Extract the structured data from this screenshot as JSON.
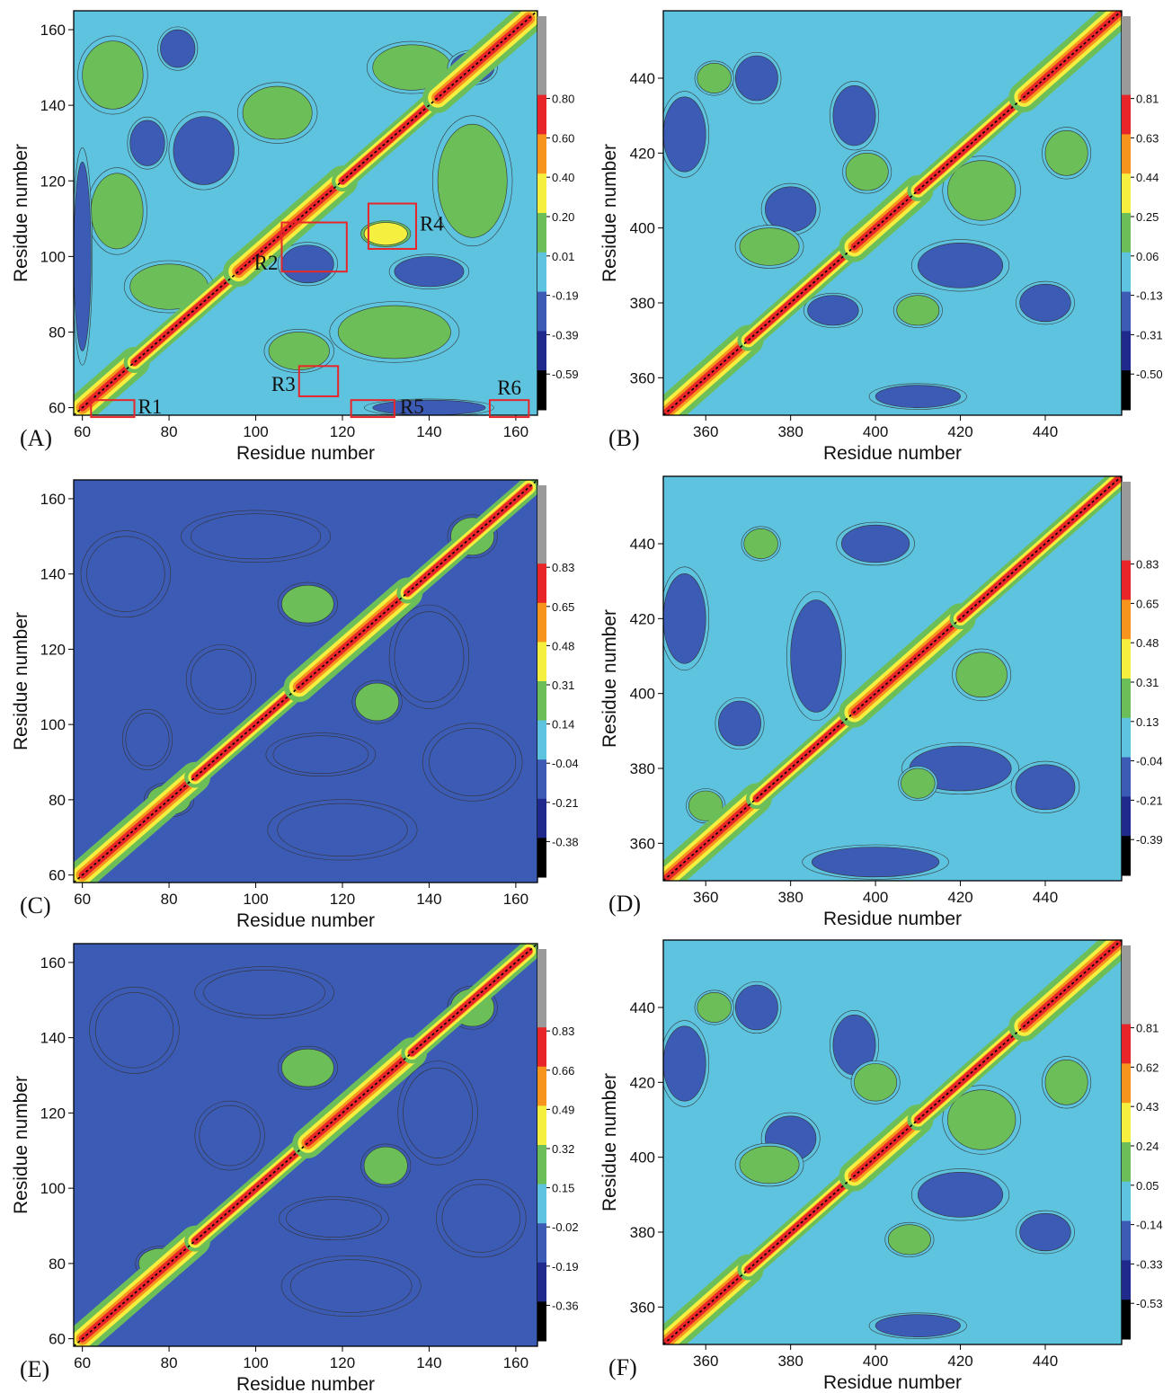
{
  "figure": {
    "colormap": [
      "#000000",
      "#1f2a8c",
      "#3c5bb5",
      "#5ec3de",
      "#6cbf58",
      "#f5f040",
      "#f7941d",
      "#e8262a",
      "#9a9a9a"
    ]
  },
  "chart_data": [
    {
      "id": "A",
      "type": "heatmap",
      "panel_label": "(A)",
      "xlabel": "Residue number",
      "ylabel": "Residue number",
      "xlim": [
        58,
        165
      ],
      "ylim": [
        58,
        165
      ],
      "xticks": [
        60,
        80,
        100,
        120,
        140,
        160
      ],
      "yticks": [
        60,
        80,
        100,
        120,
        140,
        160
      ],
      "colorbar_labels": [
        "0.80",
        "0.60",
        "0.40",
        "0.20",
        "0.01",
        "-0.19",
        "-0.39",
        "-0.59"
      ],
      "regions": [
        {
          "label": "R1",
          "x": [
            62,
            72
          ],
          "y": [
            57.5,
            62
          ]
        },
        {
          "label": "R2",
          "x": [
            106,
            121
          ],
          "y": [
            96,
            109
          ]
        },
        {
          "label": "R3",
          "x": [
            110,
            119
          ],
          "y": [
            63,
            71
          ]
        },
        {
          "label": "R4",
          "x": [
            126,
            137
          ],
          "y": [
            102,
            114
          ]
        },
        {
          "label": "R5",
          "x": [
            122,
            132
          ],
          "y": [
            57.5,
            62
          ]
        },
        {
          "label": "R6",
          "x": [
            154,
            163
          ],
          "y": [
            57.5,
            62
          ]
        }
      ],
      "diag_breaks": [
        60,
        72,
        96,
        120,
        142,
        163
      ],
      "blobs": [
        {
          "x": 67,
          "y": 148,
          "w": 14,
          "h": 18,
          "lvl": 4
        },
        {
          "x": 68,
          "y": 112,
          "w": 12,
          "h": 20,
          "lvl": 4
        },
        {
          "x": 105,
          "y": 138,
          "w": 16,
          "h": 14,
          "lvl": 4
        },
        {
          "x": 136,
          "y": 150,
          "w": 18,
          "h": 12,
          "lvl": 4
        },
        {
          "x": 150,
          "y": 120,
          "w": 16,
          "h": 30,
          "lvl": 4
        },
        {
          "x": 132,
          "y": 80,
          "w": 26,
          "h": 14,
          "lvl": 4
        },
        {
          "x": 80,
          "y": 92,
          "w": 18,
          "h": 12,
          "lvl": 4
        },
        {
          "x": 110,
          "y": 75,
          "w": 14,
          "h": 10,
          "lvl": 4
        },
        {
          "x": 88,
          "y": 128,
          "w": 14,
          "h": 18,
          "lvl": 2
        },
        {
          "x": 75,
          "y": 130,
          "w": 8,
          "h": 12,
          "lvl": 2
        },
        {
          "x": 112,
          "y": 98,
          "w": 12,
          "h": 10,
          "lvl": 2
        },
        {
          "x": 140,
          "y": 96,
          "w": 16,
          "h": 8,
          "lvl": 2
        },
        {
          "x": 82,
          "y": 155,
          "w": 8,
          "h": 10,
          "lvl": 2
        },
        {
          "x": 150,
          "y": 150,
          "w": 10,
          "h": 8,
          "lvl": 2
        },
        {
          "x": 140,
          "y": 60,
          "w": 26,
          "h": 4,
          "lvl": 2
        },
        {
          "x": 60,
          "y": 100,
          "w": 4,
          "h": 50,
          "lvl": 2
        },
        {
          "x": 130,
          "y": 106,
          "w": 10,
          "h": 6,
          "lvl": 5
        }
      ]
    },
    {
      "id": "B",
      "type": "heatmap",
      "panel_label": "(B)",
      "xlabel": "Residue number",
      "ylabel": "Residue number",
      "xlim": [
        350,
        458
      ],
      "ylim": [
        350,
        458
      ],
      "xticks": [
        360,
        380,
        400,
        420,
        440
      ],
      "yticks": [
        360,
        380,
        400,
        420,
        440
      ],
      "colorbar_labels": [
        "0.81",
        "0.63",
        "0.44",
        "0.25",
        "0.06",
        "-0.13",
        "-0.31",
        "-0.50"
      ],
      "diag_breaks": [
        350,
        370,
        395,
        410,
        435,
        458
      ],
      "blobs": [
        {
          "x": 355,
          "y": 425,
          "w": 10,
          "h": 20,
          "lvl": 2
        },
        {
          "x": 372,
          "y": 440,
          "w": 10,
          "h": 12,
          "lvl": 2
        },
        {
          "x": 395,
          "y": 430,
          "w": 10,
          "h": 16,
          "lvl": 2
        },
        {
          "x": 380,
          "y": 405,
          "w": 12,
          "h": 12,
          "lvl": 2
        },
        {
          "x": 420,
          "y": 390,
          "w": 20,
          "h": 12,
          "lvl": 2
        },
        {
          "x": 440,
          "y": 380,
          "w": 12,
          "h": 10,
          "lvl": 2
        },
        {
          "x": 390,
          "y": 378,
          "w": 12,
          "h": 8,
          "lvl": 2
        },
        {
          "x": 410,
          "y": 355,
          "w": 20,
          "h": 6,
          "lvl": 2
        },
        {
          "x": 375,
          "y": 395,
          "w": 14,
          "h": 10,
          "lvl": 4
        },
        {
          "x": 425,
          "y": 410,
          "w": 16,
          "h": 16,
          "lvl": 4
        },
        {
          "x": 398,
          "y": 415,
          "w": 10,
          "h": 10,
          "lvl": 4
        },
        {
          "x": 410,
          "y": 378,
          "w": 10,
          "h": 8,
          "lvl": 4
        },
        {
          "x": 362,
          "y": 440,
          "w": 8,
          "h": 8,
          "lvl": 4
        },
        {
          "x": 445,
          "y": 420,
          "w": 10,
          "h": 12,
          "lvl": 4
        }
      ]
    },
    {
      "id": "C",
      "type": "heatmap",
      "panel_label": "(C)",
      "xlabel": "Residue number",
      "ylabel": "Residue number",
      "xlim": [
        58,
        165
      ],
      "ylim": [
        58,
        165
      ],
      "xticks": [
        60,
        80,
        100,
        120,
        140,
        160
      ],
      "yticks": [
        60,
        80,
        100,
        120,
        140,
        160
      ],
      "colorbar_labels": [
        "0.83",
        "0.65",
        "0.48",
        "0.31",
        "0.14",
        "-0.04",
        "-0.21",
        "-0.38"
      ],
      "diag_breaks": [
        60,
        86,
        110,
        135,
        163
      ],
      "blobs": [
        {
          "x": 70,
          "y": 140,
          "w": 18,
          "h": 20,
          "lvl": 2
        },
        {
          "x": 92,
          "y": 112,
          "w": 14,
          "h": 16,
          "lvl": 2
        },
        {
          "x": 115,
          "y": 92,
          "w": 22,
          "h": 10,
          "lvl": 2
        },
        {
          "x": 140,
          "y": 118,
          "w": 16,
          "h": 24,
          "lvl": 2
        },
        {
          "x": 100,
          "y": 150,
          "w": 30,
          "h": 12,
          "lvl": 2
        },
        {
          "x": 150,
          "y": 90,
          "w": 20,
          "h": 18,
          "lvl": 2
        },
        {
          "x": 120,
          "y": 72,
          "w": 30,
          "h": 14,
          "lvl": 2
        },
        {
          "x": 75,
          "y": 96,
          "w": 10,
          "h": 14,
          "lvl": 2
        },
        {
          "x": 112,
          "y": 132,
          "w": 12,
          "h": 10,
          "lvl": 4
        },
        {
          "x": 128,
          "y": 106,
          "w": 10,
          "h": 10,
          "lvl": 4
        },
        {
          "x": 80,
          "y": 80,
          "w": 10,
          "h": 8,
          "lvl": 4
        },
        {
          "x": 150,
          "y": 150,
          "w": 10,
          "h": 10,
          "lvl": 4
        }
      ]
    },
    {
      "id": "D",
      "type": "heatmap",
      "panel_label": "(D)",
      "xlabel": "Residue number",
      "ylabel": "Residue number",
      "xlim": [
        350,
        458
      ],
      "ylim": [
        350,
        458
      ],
      "xticks": [
        360,
        380,
        400,
        420,
        440
      ],
      "yticks": [
        360,
        380,
        400,
        420,
        440
      ],
      "colorbar_labels": [
        "0.83",
        "0.65",
        "0.48",
        "0.31",
        "0.13",
        "-0.04",
        "-0.21",
        "-0.39"
      ],
      "diag_breaks": [
        350,
        372,
        395,
        420,
        458
      ],
      "blobs": [
        {
          "x": 355,
          "y": 420,
          "w": 10,
          "h": 24,
          "lvl": 2
        },
        {
          "x": 386,
          "y": 410,
          "w": 12,
          "h": 30,
          "lvl": 2
        },
        {
          "x": 420,
          "y": 380,
          "w": 24,
          "h": 12,
          "lvl": 2
        },
        {
          "x": 400,
          "y": 440,
          "w": 16,
          "h": 10,
          "lvl": 2
        },
        {
          "x": 440,
          "y": 375,
          "w": 14,
          "h": 12,
          "lvl": 2
        },
        {
          "x": 400,
          "y": 355,
          "w": 30,
          "h": 8,
          "lvl": 2
        },
        {
          "x": 368,
          "y": 392,
          "w": 10,
          "h": 12,
          "lvl": 2
        },
        {
          "x": 425,
          "y": 405,
          "w": 12,
          "h": 12,
          "lvl": 4
        },
        {
          "x": 373,
          "y": 440,
          "w": 8,
          "h": 8,
          "lvl": 4
        },
        {
          "x": 410,
          "y": 376,
          "w": 8,
          "h": 8,
          "lvl": 4
        },
        {
          "x": 360,
          "y": 370,
          "w": 8,
          "h": 8,
          "lvl": 4
        }
      ]
    },
    {
      "id": "E",
      "type": "heatmap",
      "panel_label": "(E)",
      "xlabel": "Residue number",
      "ylabel": "Residue number",
      "xlim": [
        58,
        165
      ],
      "ylim": [
        58,
        165
      ],
      "xticks": [
        60,
        80,
        100,
        120,
        140,
        160
      ],
      "yticks": [
        60,
        80,
        100,
        120,
        140,
        160
      ],
      "colorbar_labels": [
        "0.83",
        "0.66",
        "0.49",
        "0.32",
        "0.15",
        "-0.02",
        "-0.19",
        "-0.36"
      ],
      "diag_breaks": [
        60,
        86,
        112,
        136,
        163
      ],
      "blobs": [
        {
          "x": 72,
          "y": 142,
          "w": 18,
          "h": 20,
          "lvl": 2
        },
        {
          "x": 94,
          "y": 114,
          "w": 14,
          "h": 16,
          "lvl": 2
        },
        {
          "x": 118,
          "y": 92,
          "w": 22,
          "h": 10,
          "lvl": 2
        },
        {
          "x": 142,
          "y": 120,
          "w": 16,
          "h": 24,
          "lvl": 2
        },
        {
          "x": 102,
          "y": 152,
          "w": 28,
          "h": 12,
          "lvl": 2
        },
        {
          "x": 152,
          "y": 92,
          "w": 18,
          "h": 18,
          "lvl": 2
        },
        {
          "x": 122,
          "y": 74,
          "w": 28,
          "h": 14,
          "lvl": 2
        },
        {
          "x": 112,
          "y": 132,
          "w": 12,
          "h": 10,
          "lvl": 4
        },
        {
          "x": 130,
          "y": 106,
          "w": 10,
          "h": 10,
          "lvl": 4
        },
        {
          "x": 78,
          "y": 80,
          "w": 10,
          "h": 8,
          "lvl": 4
        },
        {
          "x": 150,
          "y": 148,
          "w": 10,
          "h": 10,
          "lvl": 4
        }
      ]
    },
    {
      "id": "F",
      "type": "heatmap",
      "panel_label": "(F)",
      "xlabel": "Residue number",
      "ylabel": "Residue number",
      "xlim": [
        350,
        458
      ],
      "ylim": [
        350,
        458
      ],
      "xticks": [
        360,
        380,
        400,
        420,
        440
      ],
      "yticks": [
        360,
        380,
        400,
        420,
        440
      ],
      "colorbar_labels": [
        "0.81",
        "0.62",
        "0.43",
        "0.24",
        "0.05",
        "-0.14",
        "-0.33",
        "-0.53"
      ],
      "diag_breaks": [
        350,
        370,
        395,
        410,
        435,
        458
      ],
      "blobs": [
        {
          "x": 355,
          "y": 425,
          "w": 10,
          "h": 20,
          "lvl": 2
        },
        {
          "x": 372,
          "y": 440,
          "w": 10,
          "h": 12,
          "lvl": 2
        },
        {
          "x": 395,
          "y": 430,
          "w": 10,
          "h": 16,
          "lvl": 2
        },
        {
          "x": 380,
          "y": 405,
          "w": 12,
          "h": 12,
          "lvl": 2
        },
        {
          "x": 420,
          "y": 390,
          "w": 20,
          "h": 12,
          "lvl": 2
        },
        {
          "x": 440,
          "y": 380,
          "w": 12,
          "h": 10,
          "lvl": 2
        },
        {
          "x": 410,
          "y": 355,
          "w": 20,
          "h": 6,
          "lvl": 2
        },
        {
          "x": 375,
          "y": 398,
          "w": 14,
          "h": 10,
          "lvl": 4
        },
        {
          "x": 425,
          "y": 410,
          "w": 16,
          "h": 16,
          "lvl": 4
        },
        {
          "x": 400,
          "y": 420,
          "w": 10,
          "h": 10,
          "lvl": 4
        },
        {
          "x": 408,
          "y": 378,
          "w": 10,
          "h": 8,
          "lvl": 4
        },
        {
          "x": 445,
          "y": 420,
          "w": 10,
          "h": 12,
          "lvl": 4
        },
        {
          "x": 362,
          "y": 440,
          "w": 8,
          "h": 8,
          "lvl": 4
        }
      ]
    }
  ]
}
